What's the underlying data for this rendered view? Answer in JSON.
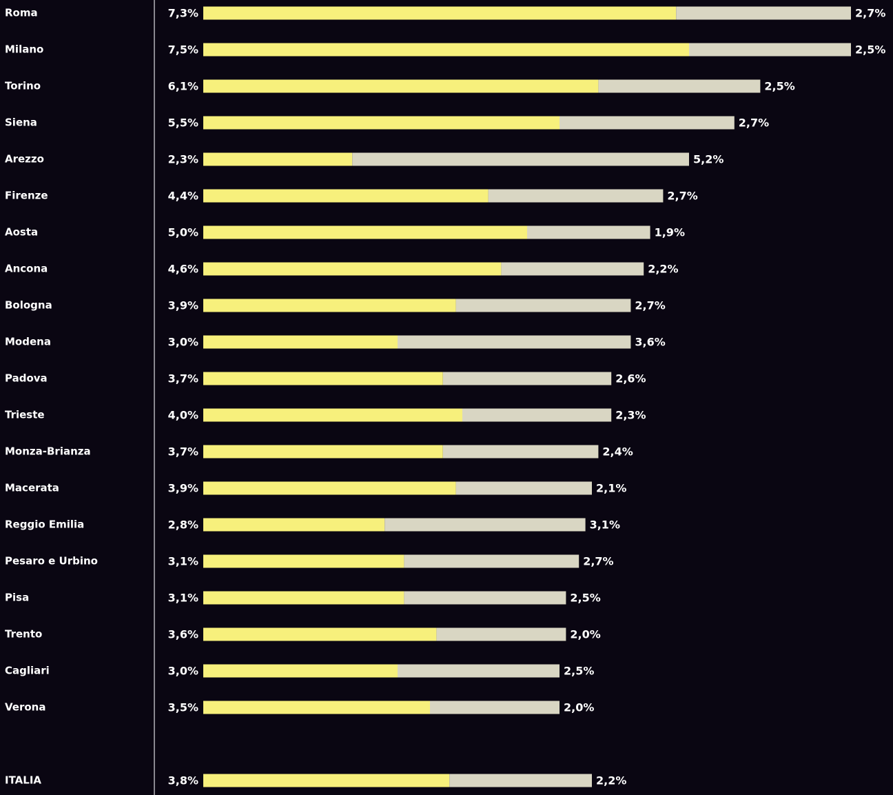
{
  "chart_data": {
    "type": "bar",
    "orientation": "horizontal",
    "stacked": true,
    "categories": [
      "Roma",
      "Milano",
      "Torino",
      "Siena",
      "Arezzo",
      "Firenze",
      "Aosta",
      "Ancona",
      "Bologna",
      "Modena",
      "Padova",
      "Trieste",
      "Monza-Brianza",
      "Macerata",
      "Reggio Emilia",
      "Pesaro e Urbino",
      "Pisa",
      "Trento",
      "Cagliari",
      "Verona",
      "ITALIA"
    ],
    "series": [
      {
        "color": "#f7f07c",
        "values": [
          7.3,
          7.5,
          6.1,
          5.5,
          2.3,
          4.4,
          5.0,
          4.6,
          3.9,
          3.0,
          3.7,
          4.0,
          3.7,
          3.9,
          2.8,
          3.1,
          3.1,
          3.6,
          3.0,
          3.5,
          3.8
        ],
        "value_labels": [
          "7,3%",
          "7,5%",
          "6,1%",
          "5,5%",
          "2,3%",
          "4,4%",
          "5,0%",
          "4,6%",
          "3,9%",
          "3,0%",
          "3,7%",
          "4,0%",
          "3,7%",
          "3,9%",
          "2,8%",
          "3,1%",
          "3,1%",
          "3,6%",
          "3,0%",
          "3,5%",
          "3,8%"
        ]
      },
      {
        "color": "#d9d6c3",
        "values": [
          2.7,
          2.5,
          2.5,
          2.7,
          5.2,
          2.7,
          1.9,
          2.2,
          2.7,
          3.6,
          2.6,
          2.3,
          2.4,
          2.1,
          3.1,
          2.7,
          2.5,
          2.0,
          2.5,
          2.0,
          2.2
        ],
        "value_labels": [
          "2,7%",
          "2,5%",
          "2,5%",
          "2,7%",
          "5,2%",
          "2,7%",
          "1,9%",
          "2,2%",
          "2,7%",
          "3,6%",
          "2,6%",
          "2,3%",
          "2,4%",
          "2,1%",
          "3,1%",
          "2,7%",
          "2,5%",
          "2,0%",
          "2,5%",
          "2,0%",
          "2,2%"
        ]
      }
    ]
  }
}
